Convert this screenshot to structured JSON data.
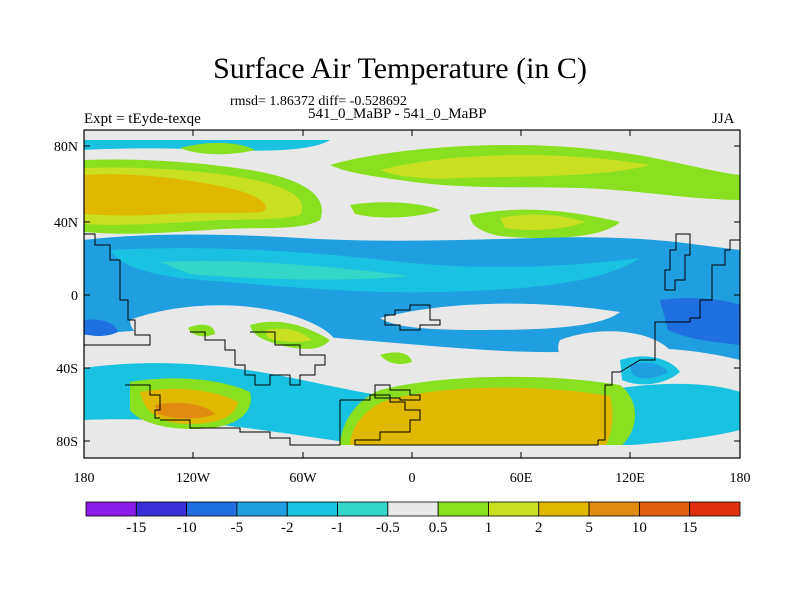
{
  "title": "Surface Air Temperature (in C)",
  "stats": "rmsd= 1.86372 diff= -0.528692",
  "experiment": "Expt = tEyde-texqe",
  "comparison": "541_0_MaBP - 541_0_MaBP",
  "season": "JJA",
  "axes": {
    "lat_ticks": [
      "80N",
      "40N",
      "0",
      "40S",
      "80S"
    ],
    "lon_ticks": [
      "180",
      "120W",
      "60W",
      "0",
      "60E",
      "120E",
      "180"
    ]
  },
  "colorbar": {
    "labels": [
      "-15",
      "-10",
      "-5",
      "-2",
      "-1",
      "-0.5",
      "0.5",
      "1",
      "2",
      "5",
      "10",
      "15"
    ],
    "colors": [
      "#8a1ee8",
      "#3a2fd6",
      "#1f6fe0",
      "#1f9fe0",
      "#18c2e0",
      "#33d6c8",
      "#e8e8e8",
      "#88e020",
      "#c8e020",
      "#e0b800",
      "#e08a10",
      "#e06010",
      "#e03010"
    ]
  },
  "palette": {
    "neutral": "#e8e8e8",
    "cyan": "#18c2e0",
    "teal": "#33d6c8",
    "blue": "#1f9fe0",
    "deep_blue": "#1f6fe0",
    "green": "#88e020",
    "yellow": "#c8e020",
    "gold": "#e0b800",
    "orange": "#e08a10"
  }
}
